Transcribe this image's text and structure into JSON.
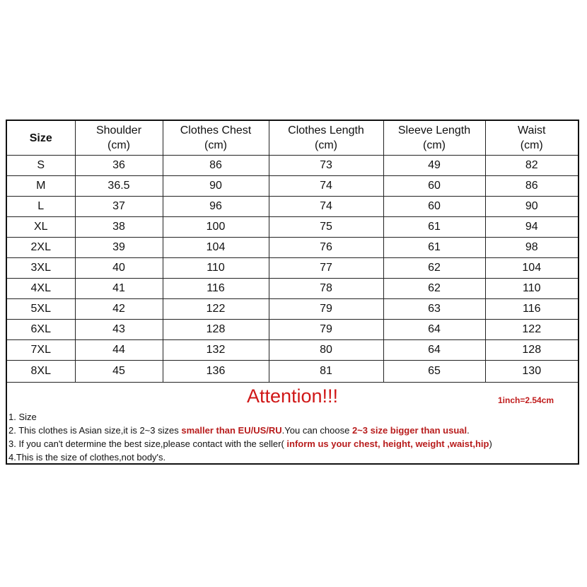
{
  "table": {
    "headers": [
      {
        "l1": "Size",
        "l2": ""
      },
      {
        "l1": "Shoulder",
        "l2": "(cm)"
      },
      {
        "l1": "Clothes Chest",
        "l2": "(cm)"
      },
      {
        "l1": "Clothes Length",
        "l2": "(cm)"
      },
      {
        "l1": "Sleeve Length",
        "l2": "(cm)"
      },
      {
        "l1": "Waist",
        "l2": "(cm)"
      }
    ],
    "rows": [
      [
        "S",
        "36",
        "86",
        "73",
        "49",
        "82"
      ],
      [
        "M",
        "36.5",
        "90",
        "74",
        "60",
        "86"
      ],
      [
        "L",
        "37",
        "96",
        "74",
        "60",
        "90"
      ],
      [
        "XL",
        "38",
        "100",
        "75",
        "61",
        "94"
      ],
      [
        "2XL",
        "39",
        "104",
        "76",
        "61",
        "98"
      ],
      [
        "3XL",
        "40",
        "110",
        "77",
        "62",
        "104"
      ],
      [
        "4XL",
        "41",
        "116",
        "78",
        "62",
        "110"
      ],
      [
        "5XL",
        "42",
        "122",
        "79",
        "63",
        "116"
      ],
      [
        "6XL",
        "43",
        "128",
        "79",
        "64",
        "122"
      ],
      [
        "7XL",
        "44",
        "132",
        "80",
        "64",
        "128"
      ],
      [
        "8XL",
        "45",
        "136",
        "81",
        "65",
        "130"
      ]
    ]
  },
  "notes": {
    "attention": "Attention!!!",
    "inch": "1inch=2.54cm",
    "n1": "1. Size",
    "n2a": "2. This clothes is Asian size,it is 2~3 sizes ",
    "n2b": "smaller than EU/US/RU",
    "n2c": ".You can choose ",
    "n2d": "2~3 size bigger than usual",
    "n2e": ".",
    "n3a": "3. If you can't determine the best size,please contact with the seller( ",
    "n3b": "inform us your chest, height, weight ,waist,hip",
    "n3c": ")",
    "n4": "4.This is the size of clothes,not body's."
  },
  "colors": {
    "attention": "#d01818",
    "emphasis": "#b81c1c"
  }
}
